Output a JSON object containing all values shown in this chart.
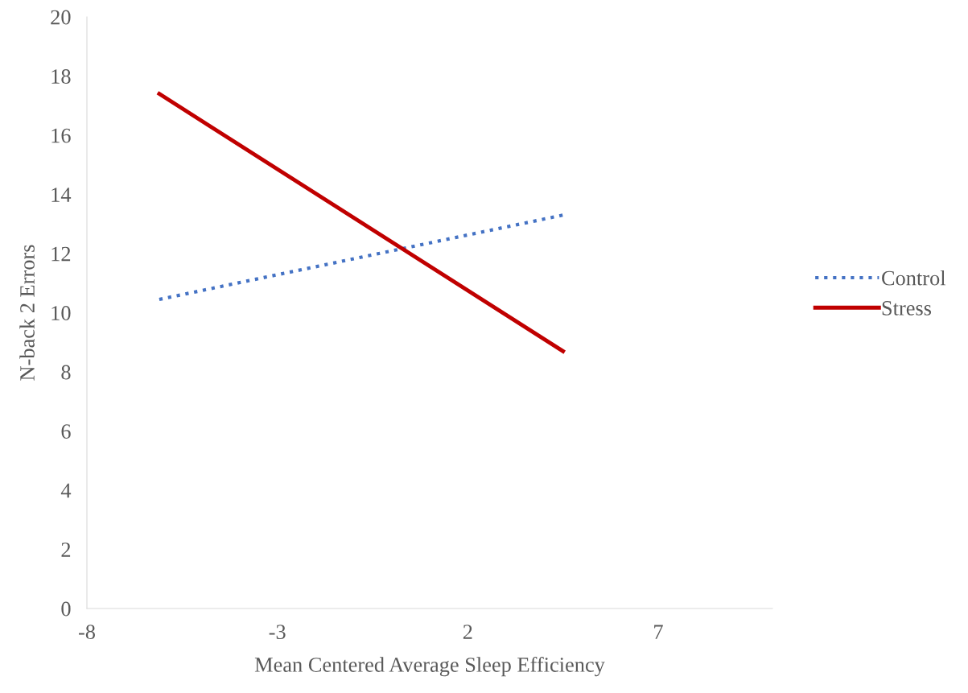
{
  "chart_data": {
    "type": "line",
    "xlabel": "Mean Centered Average Sleep Efficiency",
    "ylabel": "N-back 2 Errors",
    "x": [
      -6.1,
      4.5
    ],
    "series": [
      {
        "name": "Control",
        "color": "#4472c4",
        "values": [
          10.45,
          13.3
        ],
        "line_style": "dotted"
      },
      {
        "name": "Stress",
        "color": "#c00000",
        "values": [
          17.4,
          8.7
        ],
        "line_style": "solid"
      }
    ],
    "xlim": [
      -8,
      10
    ],
    "xticks": [
      -8,
      -3,
      2,
      7
    ],
    "ylim": [
      0,
      20
    ],
    "yticks": [
      0,
      2,
      4,
      6,
      8,
      10,
      12,
      14,
      16,
      18,
      20
    ],
    "grid": false,
    "legend": "right",
    "marker": "none"
  }
}
